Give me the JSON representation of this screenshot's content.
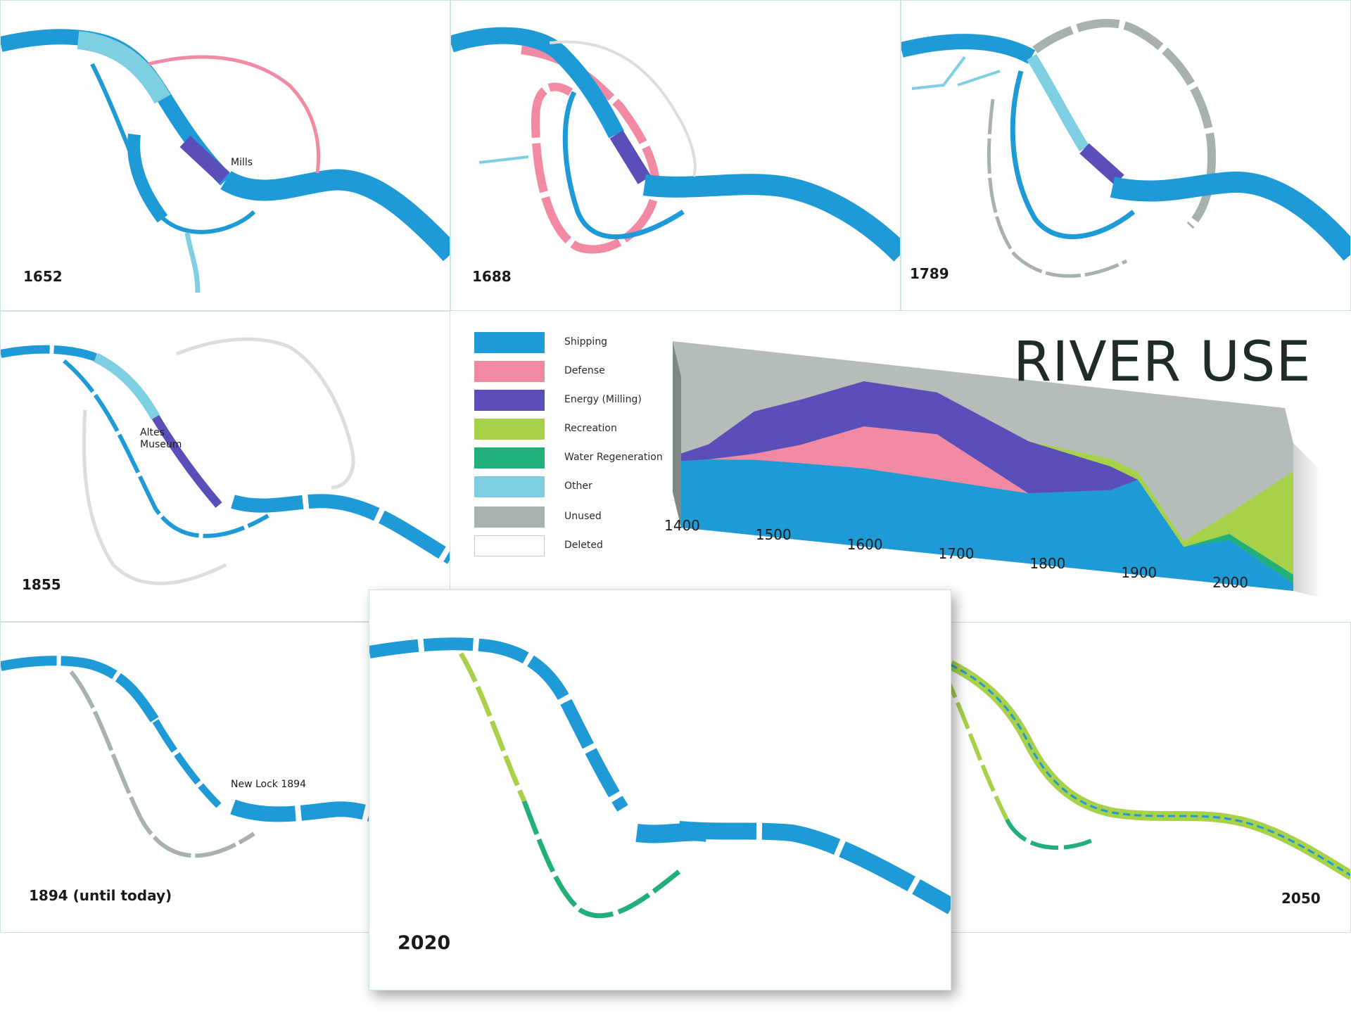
{
  "colors": {
    "shipping": "#1e9ad6",
    "defense": "#f28aa3",
    "energy": "#5a4fb8",
    "recreation": "#a8d14a",
    "regeneration": "#22b07a",
    "other": "#7fcfe3",
    "unused": "#a7b2ac",
    "deleted": "#ffffff"
  },
  "maps": [
    {
      "year": "1652",
      "annotation": "Mills"
    },
    {
      "year": "1688"
    },
    {
      "year": "1789"
    },
    {
      "year": "1855",
      "annotation": "Altes\nMuseum"
    },
    {
      "year": "1894 (until today)",
      "annotation": "New Lock 1894"
    },
    {
      "year": "2020"
    },
    {
      "year": "2050"
    }
  ],
  "legend": [
    {
      "label": "Shipping",
      "color": "#1e9ad6"
    },
    {
      "label": "Defense",
      "color": "#f28aa3"
    },
    {
      "label": "Energy (Milling)",
      "color": "#5a4fb8"
    },
    {
      "label": "Recreation",
      "color": "#a8d14a"
    },
    {
      "label": "Water Regeneration",
      "color": "#22b07a"
    },
    {
      "label": "Other",
      "color": "#7fcfe3"
    },
    {
      "label": "Unused",
      "color": "#a7b2ac"
    },
    {
      "label": "Deleted",
      "color": "#ffffff"
    }
  ],
  "chart_data": {
    "type": "area",
    "title": "RIVER USE",
    "x_ticks": [
      "1400",
      "1500",
      "1600",
      "1700",
      "1800",
      "1900",
      "2000"
    ],
    "x": [
      1400,
      1430,
      1480,
      1530,
      1600,
      1680,
      1780,
      1870,
      1900,
      1950,
      2000,
      2070
    ],
    "series": [
      {
        "name": "Shipping",
        "values": [
          44,
          47,
          50,
          51,
          52,
          50,
          47,
          55,
          64,
          22,
          30,
          5
        ]
      },
      {
        "name": "Defense",
        "values": [
          0,
          0,
          4,
          12,
          28,
          30,
          0,
          0,
          0,
          0,
          0,
          0
        ]
      },
      {
        "name": "Energy (Milling)",
        "values": [
          5,
          10,
          28,
          30,
          30,
          28,
          35,
          16,
          0,
          0,
          0,
          0
        ]
      },
      {
        "name": "Water Regeneration",
        "values": [
          0,
          0,
          0,
          0,
          0,
          0,
          0,
          0,
          0,
          0,
          4,
          6
        ]
      },
      {
        "name": "Recreation",
        "values": [
          0,
          0,
          0,
          0,
          0,
          0,
          0,
          5,
          5,
          4,
          14,
          70
        ]
      }
    ],
    "ylim": [
      0,
      100
    ],
    "total_capacity": 100
  }
}
